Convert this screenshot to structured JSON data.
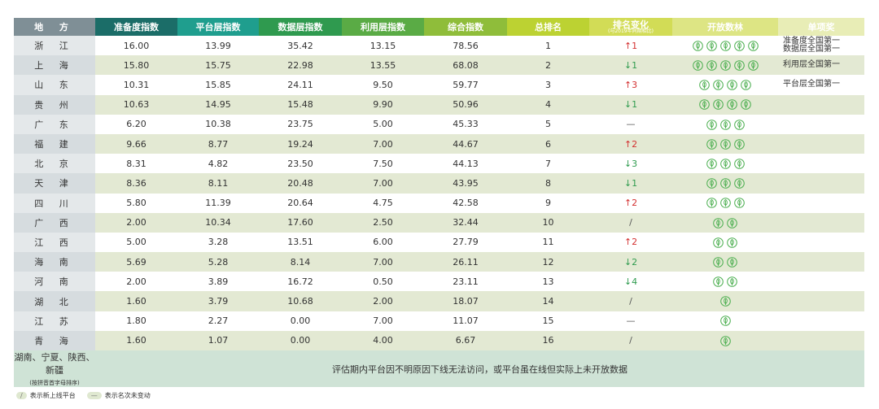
{
  "header": {
    "columns": [
      "地 方",
      "准备度指数",
      "平台层指数",
      "数据层指数",
      "利用层指数",
      "综合指数",
      "总排名",
      "排名变化",
      "开放数林",
      "单项奖"
    ],
    "change_sub": "(与2019年同期相比)"
  },
  "rows": [
    {
      "place": "浙 江",
      "values": [
        "16.00",
        "13.99",
        "35.42",
        "13.15",
        "78.56"
      ],
      "rank": "1",
      "change": "↑1",
      "leaves": 5,
      "awards": [
        "准备度全国第一",
        "数据层全国第一"
      ]
    },
    {
      "place": "上 海",
      "values": [
        "15.80",
        "15.75",
        "22.98",
        "13.55",
        "68.08"
      ],
      "rank": "2",
      "change": "↓1",
      "leaves": 5,
      "awards": [
        "利用层全国第一"
      ]
    },
    {
      "place": "山 东",
      "values": [
        "10.31",
        "15.85",
        "24.11",
        "9.50",
        "59.77"
      ],
      "rank": "3",
      "change": "↑3",
      "leaves": 4,
      "awards": [
        "平台层全国第一"
      ]
    },
    {
      "place": "贵 州",
      "values": [
        "10.63",
        "14.95",
        "15.48",
        "9.90",
        "50.96"
      ],
      "rank": "4",
      "change": "↓1",
      "leaves": 4
    },
    {
      "place": "广 东",
      "values": [
        "6.20",
        "10.38",
        "23.75",
        "5.00",
        "45.33"
      ],
      "rank": "5",
      "change": "—",
      "leaves": 3
    },
    {
      "place": "福 建",
      "values": [
        "9.66",
        "8.77",
        "19.24",
        "7.00",
        "44.67"
      ],
      "rank": "6",
      "change": "↑2",
      "leaves": 3
    },
    {
      "place": "北 京",
      "values": [
        "8.31",
        "4.82",
        "23.50",
        "7.50",
        "44.13"
      ],
      "rank": "7",
      "change": "↓3",
      "leaves": 3
    },
    {
      "place": "天 津",
      "values": [
        "8.36",
        "8.11",
        "20.48",
        "7.00",
        "43.95"
      ],
      "rank": "8",
      "change": "↓1",
      "leaves": 3
    },
    {
      "place": "四 川",
      "values": [
        "5.80",
        "11.39",
        "20.64",
        "4.75",
        "42.58"
      ],
      "rank": "9",
      "change": "↑2",
      "leaves": 3
    },
    {
      "place": "广 西",
      "values": [
        "2.00",
        "10.34",
        "17.60",
        "2.50",
        "32.44"
      ],
      "rank": "10",
      "change": "/",
      "leaves": 2
    },
    {
      "place": "江 西",
      "values": [
        "5.00",
        "3.28",
        "13.51",
        "6.00",
        "27.79"
      ],
      "rank": "11",
      "change": "↑2",
      "leaves": 2
    },
    {
      "place": "海 南",
      "values": [
        "5.69",
        "5.28",
        "8.14",
        "7.00",
        "26.11"
      ],
      "rank": "12",
      "change": "↓2",
      "leaves": 2
    },
    {
      "place": "河 南",
      "values": [
        "2.00",
        "3.89",
        "16.72",
        "0.50",
        "23.11"
      ],
      "rank": "13",
      "change": "↓4",
      "leaves": 2
    },
    {
      "place": "湖 北",
      "values": [
        "1.60",
        "3.79",
        "10.68",
        "2.00",
        "18.07"
      ],
      "rank": "14",
      "change": "/",
      "leaves": 1
    },
    {
      "place": "江 苏",
      "values": [
        "1.80",
        "2.27",
        "0.00",
        "7.00",
        "11.07"
      ],
      "rank": "15",
      "change": "—",
      "leaves": 1
    },
    {
      "place": "青 海",
      "values": [
        "1.60",
        "1.07",
        "0.00",
        "4.00",
        "6.67"
      ],
      "rank": "16",
      "change": "/",
      "leaves": 1
    }
  ],
  "footer": {
    "places": "湖南、宁夏、陕西、新疆",
    "places_note": "(按拼音首字母排序)",
    "note": "评估期内平台因不明原因下线无法访问，或平台虽在线但实际上未开放数据"
  },
  "legend": [
    {
      "symbol": "/",
      "text": "表示新上线平台"
    },
    {
      "symbol": "—",
      "text": "表示名次未变动"
    }
  ]
}
